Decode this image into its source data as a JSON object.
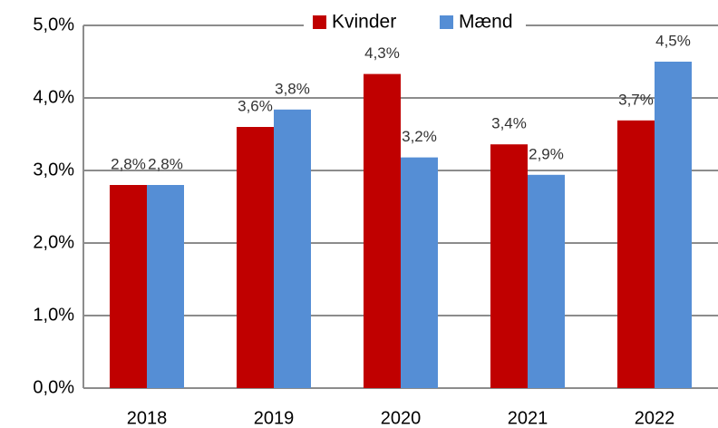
{
  "chart_data": {
    "type": "bar",
    "categories": [
      "2018",
      "2019",
      "2020",
      "2021",
      "2022"
    ],
    "series": [
      {
        "name": "Kvinder",
        "color": "#c00000",
        "values": [
          2.8,
          3.6,
          4.33,
          3.36,
          3.69
        ],
        "value_labels": [
          "2,8%",
          "3,6%",
          "4,3%",
          "3,4%",
          "3,7%"
        ]
      },
      {
        "name": "Mænd",
        "color": "#558ed5",
        "values": [
          2.8,
          3.84,
          3.18,
          2.94,
          4.5
        ],
        "value_labels": [
          "2,8%",
          "3,8%",
          "3,2%",
          "2,9%",
          "4,5%"
        ]
      }
    ],
    "ylim": [
      0,
      5
    ],
    "yticks": [
      {
        "value": 0,
        "label": "0,0%"
      },
      {
        "value": 1,
        "label": "1,0%"
      },
      {
        "value": 2,
        "label": "2,0%"
      },
      {
        "value": 3,
        "label": "3,0%"
      },
      {
        "value": 4,
        "label": "4,0%"
      },
      {
        "value": 5,
        "label": "5,0%"
      }
    ],
    "grid": true,
    "legend": "top"
  }
}
